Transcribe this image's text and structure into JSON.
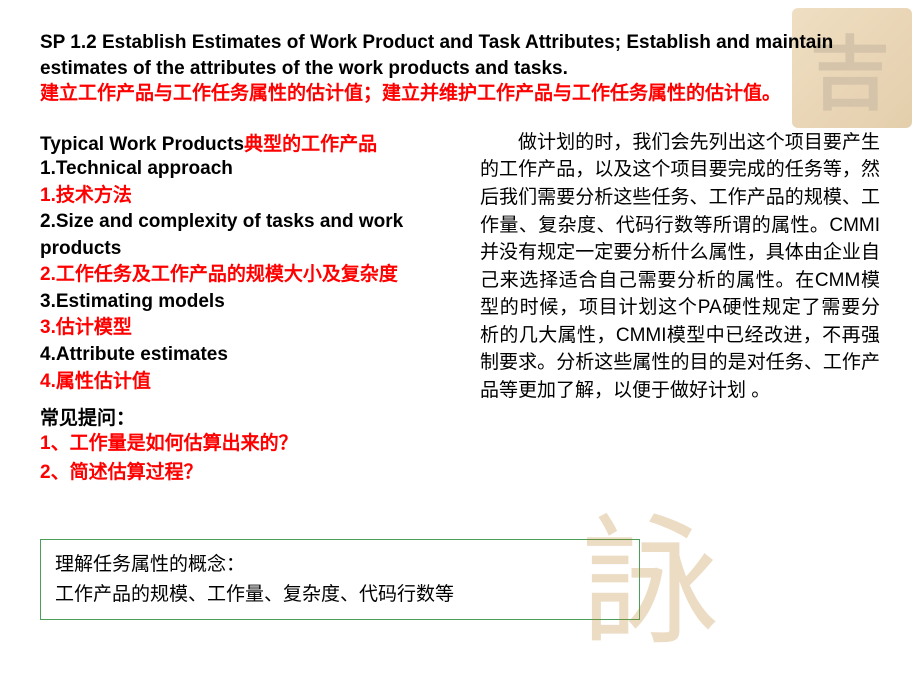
{
  "title": {
    "en": "SP 1.2 Establish Estimates of Work Product and Task Attributes; Establish and maintain estimates of the attributes of the work products and tasks.",
    "cn": "建立工作产品与工作任务属性的估计值；建立并维护工作产品与工作任务属性的估计值。"
  },
  "section_head": {
    "en": "Typical Work Products",
    "cn": "典型的工作产品"
  },
  "items": [
    {
      "en": "1.Technical approach",
      "cn": "1.技术方法"
    },
    {
      "en": "2.Size and complexity of tasks and work products",
      "cn": "2.工作任务及工作产品的规模大小及复杂度"
    },
    {
      "en": "3.Estimating models",
      "cn": "3.估计模型"
    },
    {
      "en": "4.Attribute estimates",
      "cn": "4.属性估计值"
    }
  ],
  "faq": {
    "head": "常见提问：",
    "q1": "1、工作量是如何估算出来的？",
    "q2": "2、简述估算过程？"
  },
  "paragraph": "做计划的时，我们会先列出这个项目要产生的工作产品，以及这个项目要完成的任务等，然后我们需要分析这些任务、工作产品的规模、工作量、复杂度、代码行数等所谓的属性。CMMI并没有规定一定要分析什么属性，具体由企业自己来选择适合自己需要分析的属性。在CMM模型的时候，项目计划这个PA硬性规定了需要分析的几大属性，CMMI模型中已经改进，不再强制要求。分析这些属性的目的是对任务、工作产品等更加了解，以便于做好计划 。",
  "note": {
    "line1": "理解任务属性的概念：",
    "line2": "工作产品的规模、工作量、复杂度、代码行数等"
  },
  "colors": {
    "accent_red": "#ff0000",
    "note_border": "#4aa05a",
    "art_a": "#d4a454",
    "art_b": "#b37614"
  }
}
